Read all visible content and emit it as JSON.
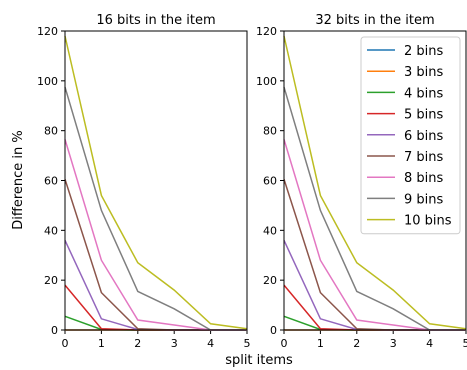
{
  "figure": {
    "ylabel": "Difference in %",
    "xlabel": "split items"
  },
  "chart_data": [
    {
      "type": "line",
      "title": "16 bits in the item",
      "x": [
        0,
        1,
        2,
        3,
        4,
        5
      ],
      "xlim": [
        0,
        5
      ],
      "ylim": [
        0,
        120
      ],
      "xticks": [
        "0",
        "1",
        "2",
        "3",
        "4",
        "5"
      ],
      "yticks": [
        "0",
        "20",
        "40",
        "60",
        "80",
        "100",
        "120"
      ],
      "series": [
        {
          "name": "2 bins",
          "color": "#1f77b4",
          "values": [
            0,
            0,
            0,
            0,
            0,
            0
          ]
        },
        {
          "name": "3 bins",
          "color": "#ff7f0e",
          "values": [
            0,
            0,
            0,
            0,
            0,
            0
          ]
        },
        {
          "name": "4 bins",
          "color": "#2ca02c",
          "values": [
            5.5,
            0.2,
            0,
            0,
            0,
            0
          ]
        },
        {
          "name": "5 bins",
          "color": "#d62728",
          "values": [
            18,
            0.5,
            0,
            0,
            0,
            0
          ]
        },
        {
          "name": "6 bins",
          "color": "#9467bd",
          "values": [
            36,
            4.5,
            0.2,
            0,
            0,
            0
          ]
        },
        {
          "name": "7 bins",
          "color": "#8c564b",
          "values": [
            60.5,
            15,
            0.5,
            0,
            0,
            0
          ]
        },
        {
          "name": "8 bins",
          "color": "#e377c2",
          "values": [
            76.5,
            28,
            4,
            2,
            0,
            0
          ]
        },
        {
          "name": "9 bins",
          "color": "#7f7f7f",
          "values": [
            97.5,
            48,
            15.5,
            8.5,
            0,
            0
          ]
        },
        {
          "name": "10 bins",
          "color": "#bcbd22",
          "values": [
            118,
            54,
            27,
            16,
            2.5,
            0.5
          ]
        }
      ]
    },
    {
      "type": "line",
      "title": "32 bits in the item",
      "x": [
        0,
        1,
        2,
        3,
        4,
        5
      ],
      "xlim": [
        0,
        5
      ],
      "ylim": [
        0,
        120
      ],
      "xticks": [
        "0",
        "1",
        "2",
        "3",
        "4",
        "5"
      ],
      "yticks": [
        "0",
        "20",
        "40",
        "60",
        "80",
        "100",
        "120"
      ],
      "legend": "top-right",
      "series": [
        {
          "name": "2 bins",
          "color": "#1f77b4",
          "values": [
            0,
            0,
            0,
            0,
            0,
            0
          ]
        },
        {
          "name": "3 bins",
          "color": "#ff7f0e",
          "values": [
            0,
            0,
            0,
            0,
            0,
            0
          ]
        },
        {
          "name": "4 bins",
          "color": "#2ca02c",
          "values": [
            5.5,
            0.2,
            0,
            0,
            0,
            0
          ]
        },
        {
          "name": "5 bins",
          "color": "#d62728",
          "values": [
            18,
            0.5,
            0,
            0,
            0,
            0
          ]
        },
        {
          "name": "6 bins",
          "color": "#9467bd",
          "values": [
            36,
            4.5,
            0.2,
            0,
            0,
            0
          ]
        },
        {
          "name": "7 bins",
          "color": "#8c564b",
          "values": [
            60.5,
            15,
            0.5,
            0,
            0,
            0
          ]
        },
        {
          "name": "8 bins",
          "color": "#e377c2",
          "values": [
            76.5,
            28,
            4,
            2,
            0,
            0
          ]
        },
        {
          "name": "9 bins",
          "color": "#7f7f7f",
          "values": [
            97.5,
            48,
            15.5,
            8.5,
            0,
            0
          ]
        },
        {
          "name": "10 bins",
          "color": "#bcbd22",
          "values": [
            118,
            54,
            27,
            16,
            2.5,
            0.5
          ]
        }
      ]
    }
  ]
}
